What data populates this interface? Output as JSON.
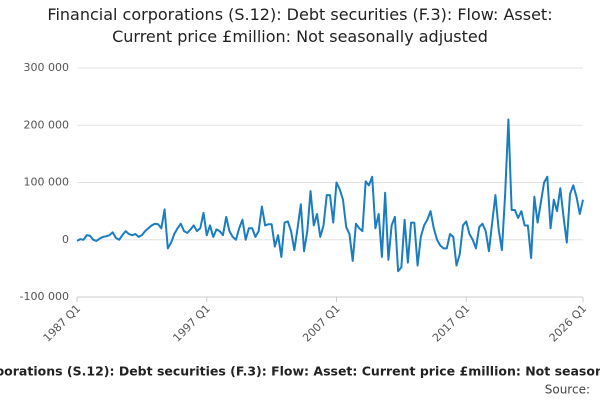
{
  "chart_data": {
    "type": "line",
    "title": "Financial corporations (S.12): Debt securities (F.3): Flow: Asset: Current price £million: Not seasonally adjusted",
    "source": "Source:",
    "categories": [
      "1987 Q1",
      null,
      null,
      null,
      null,
      null,
      null,
      null,
      null,
      null,
      null,
      null,
      null,
      null,
      null,
      null,
      null,
      null,
      null,
      null,
      null,
      null,
      null,
      null,
      null,
      null,
      null,
      null,
      null,
      null,
      null,
      null,
      null,
      null,
      null,
      null,
      null,
      null,
      null,
      null,
      "1997 Q1",
      null,
      null,
      null,
      null,
      null,
      null,
      null,
      null,
      null,
      null,
      null,
      null,
      null,
      null,
      null,
      null,
      null,
      null,
      null,
      null,
      null,
      null,
      null,
      null,
      null,
      null,
      null,
      null,
      null,
      null,
      null,
      null,
      null,
      null,
      null,
      null,
      null,
      null,
      null,
      "2007 Q1",
      null,
      null,
      null,
      null,
      null,
      null,
      null,
      null,
      null,
      null,
      null,
      null,
      null,
      null,
      null,
      null,
      null,
      null,
      null,
      null,
      null,
      null,
      null,
      null,
      null,
      null,
      null,
      null,
      null,
      null,
      null,
      null,
      null,
      null,
      null,
      null,
      null,
      null,
      null,
      "2017 Q1",
      null,
      null,
      null,
      null,
      null,
      null,
      null,
      null,
      null,
      null,
      null,
      null,
      null,
      null,
      null,
      null,
      null,
      null,
      null,
      null,
      null,
      null,
      null,
      null,
      null,
      null,
      null,
      null,
      null,
      null,
      null,
      null,
      null,
      null,
      null,
      "2026 Q1"
    ],
    "series": [
      {
        "name": "Debt securities",
        "color": "#1a7dc0",
        "values": [
          -2000,
          1000,
          0,
          8000,
          7000,
          0,
          -2000,
          2000,
          5000,
          6000,
          8000,
          13000,
          3000,
          0,
          8000,
          15000,
          10000,
          8000,
          10000,
          5000,
          8000,
          15000,
          20000,
          25000,
          28000,
          27000,
          20000,
          53000,
          -15000,
          -5000,
          10000,
          20000,
          28000,
          15000,
          12000,
          18000,
          25000,
          15000,
          20000,
          47000,
          8000,
          25000,
          5000,
          18000,
          15000,
          8000,
          40000,
          15000,
          5000,
          0,
          20000,
          35000,
          0,
          20000,
          20000,
          5000,
          15000,
          58000,
          25000,
          27000,
          27000,
          -12000,
          8000,
          -30000,
          30000,
          32000,
          15000,
          -18000,
          20000,
          62000,
          -20000,
          15000,
          85000,
          25000,
          45000,
          5000,
          25000,
          78000,
          78000,
          30000,
          100000,
          88000,
          70000,
          22000,
          10000,
          -37000,
          28000,
          20000,
          15000,
          102000,
          95000,
          110000,
          20000,
          45000,
          -30000,
          82000,
          -35000,
          25000,
          40000,
          -55000,
          -48000,
          35000,
          -40000,
          30000,
          30000,
          -45000,
          5000,
          25000,
          35000,
          50000,
          20000,
          0,
          -10000,
          -15000,
          -15000,
          10000,
          5000,
          -45000,
          -25000,
          25000,
          32000,
          10000,
          0,
          -15000,
          22000,
          28000,
          15000,
          -20000,
          30000,
          78000,
          18000,
          -18000,
          80000,
          210000,
          52000,
          52000,
          38000,
          50000,
          25000,
          25000,
          -32000,
          75000,
          30000,
          65000,
          100000,
          110000,
          20000,
          70000,
          50000,
          90000,
          40000,
          -5000,
          80000,
          95000,
          75000,
          45000,
          70000
        ]
      }
    ],
    "ylim": [
      -100000,
      300000
    ],
    "yticks": [
      {
        "value": -100000,
        "label": "-100 000"
      },
      0,
      {
        "value": 100000,
        "label": "100 000"
      },
      {
        "value": 200000,
        "label": "200 000"
      },
      {
        "value": 300000,
        "label": "300 000"
      }
    ],
    "grid": true
  }
}
